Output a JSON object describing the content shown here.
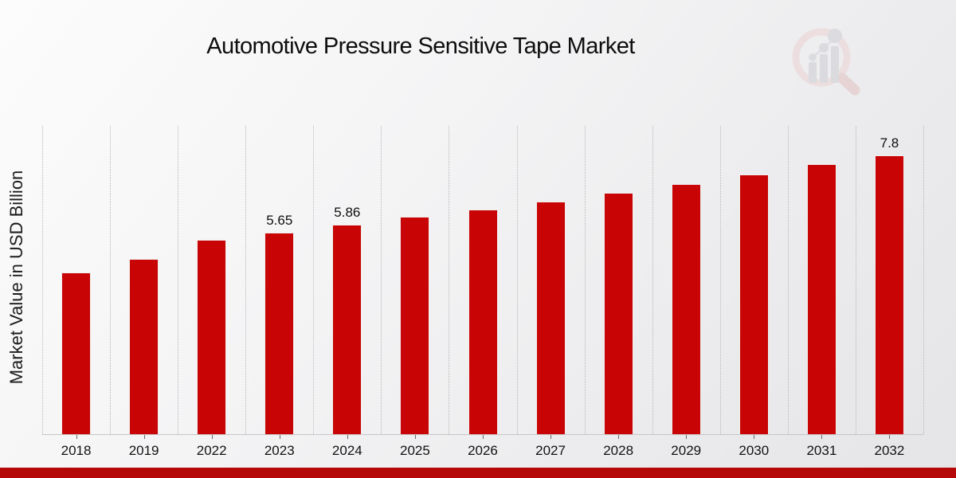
{
  "page_title": "Automotive Pressure Sensitive Tape Market",
  "chart_data": {
    "type": "bar",
    "title": "Automotive Pressure Sensitive Tape Market",
    "xlabel": "",
    "ylabel": "Market Value in USD Billion",
    "categories": [
      "2018",
      "2019",
      "2022",
      "2023",
      "2024",
      "2025",
      "2026",
      "2027",
      "2028",
      "2029",
      "2030",
      "2031",
      "2032"
    ],
    "values": [
      4.53,
      4.91,
      5.44,
      5.65,
      5.86,
      6.08,
      6.29,
      6.51,
      6.75,
      7.0,
      7.27,
      7.55,
      7.8
    ],
    "point_labels": [
      "",
      "",
      "",
      "5.65",
      "5.86",
      "",
      "",
      "",
      "",
      "",
      "",
      "",
      "7.8"
    ],
    "ylim": [
      0,
      8.63
    ],
    "grid": "vertical-dotted",
    "legend": "none",
    "bar_color": "#c90404",
    "gridline_color": "#b8b8bb"
  },
  "footer": {
    "bar_color": "#b50909"
  },
  "watermark": {
    "icon": "magnifier-bar-chart-logo",
    "ring_color": "#ecd2d2",
    "handle_color": "#e2bfbf",
    "bar_color": "#cdced2"
  }
}
